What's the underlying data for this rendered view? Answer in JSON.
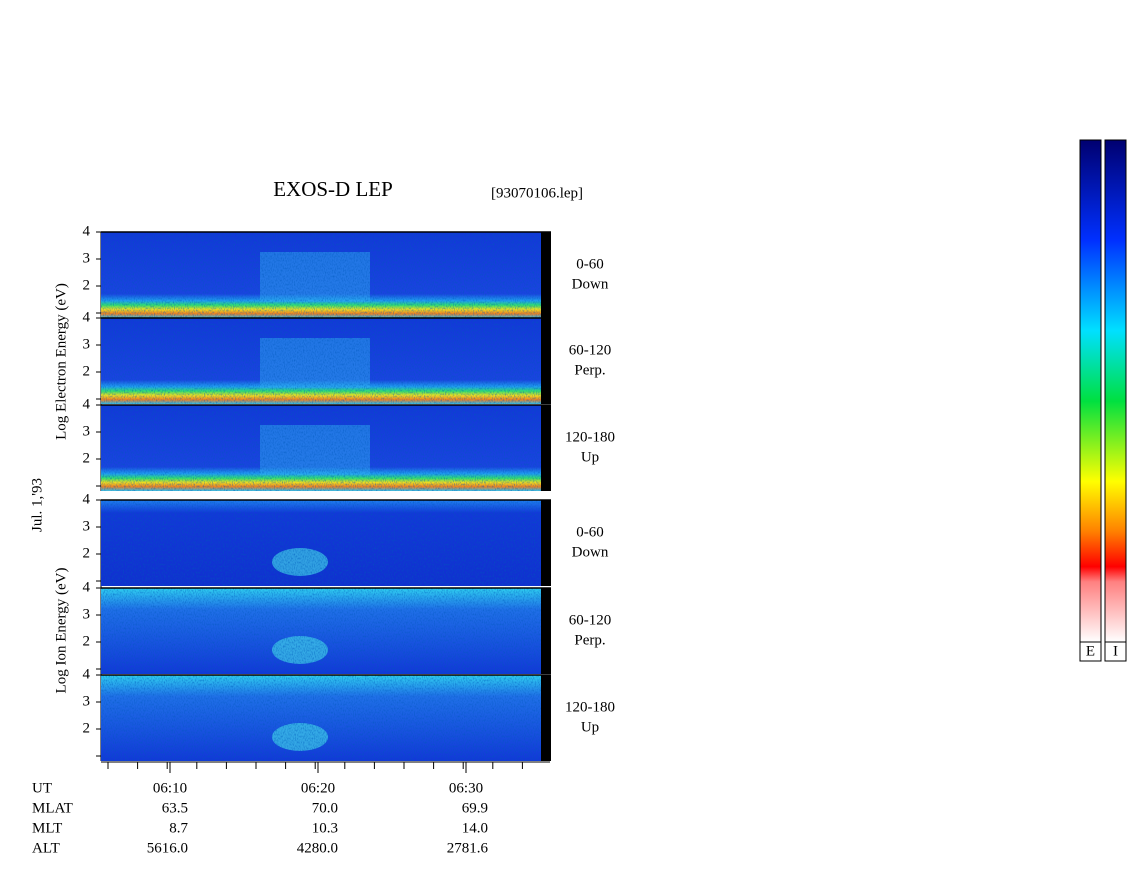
{
  "title": "EXOS-D LEP",
  "file": "[93070106.lep]",
  "date": "Jul. 1,'93",
  "groups": [
    {
      "label": "Log Electron Energy (eV)",
      "panels": [
        {
          "angle": "0-60",
          "dir": "Down"
        },
        {
          "angle": "60-120",
          "dir": "Perp."
        },
        {
          "angle": "120-180",
          "dir": "Up"
        }
      ]
    },
    {
      "label": "Log Ion Energy (eV)",
      "panels": [
        {
          "angle": "0-60",
          "dir": "Down"
        },
        {
          "angle": "60-120",
          "dir": "Perp."
        },
        {
          "angle": "120-180",
          "dir": "Up"
        }
      ]
    }
  ],
  "energy_ticks": [
    "2",
    "3",
    "4"
  ],
  "time_ticks": [
    "06:10",
    "06:20",
    "06:30"
  ],
  "ephemeris": [
    {
      "name": "UT"
    },
    {
      "name": "MLAT",
      "values": [
        "63.5",
        "70.0",
        "69.9"
      ]
    },
    {
      "name": "MLT",
      "values": [
        "8.7",
        "10.3",
        "14.0"
      ]
    },
    {
      "name": "ALT",
      "values": [
        "5616.0",
        "4280.0",
        "2781.6"
      ]
    }
  ],
  "colorbars": [
    "E",
    "I"
  ]
}
